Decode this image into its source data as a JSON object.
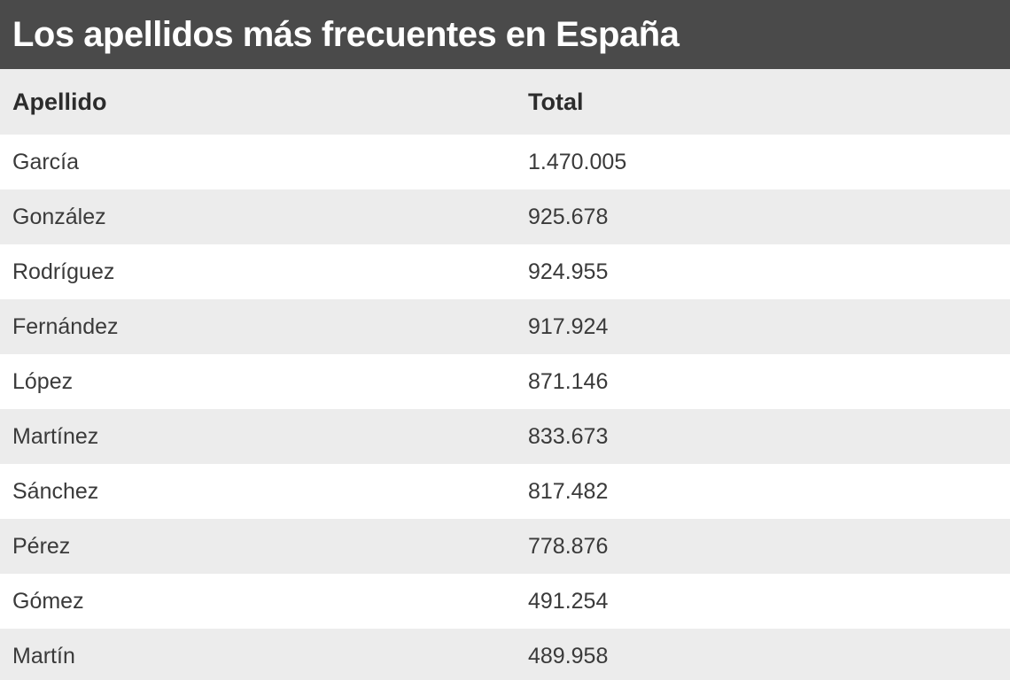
{
  "title": "Los apellidos más frecuentes en España",
  "columns": [
    "Apellido",
    "Total"
  ],
  "chart_data": {
    "type": "table",
    "title": "Los apellidos más frecuentes en España",
    "columns": [
      "Apellido",
      "Total"
    ],
    "rows": [
      [
        "García",
        "1.470.005"
      ],
      [
        "González",
        "925.678"
      ],
      [
        "Rodríguez",
        "924.955"
      ],
      [
        "Fernández",
        "917.924"
      ],
      [
        "López",
        "871.146"
      ],
      [
        "Martínez",
        "833.673"
      ],
      [
        "Sánchez",
        "817.482"
      ],
      [
        "Pérez",
        "778.876"
      ],
      [
        "Gómez",
        "491.254"
      ],
      [
        "Martín",
        "489.958"
      ]
    ]
  }
}
